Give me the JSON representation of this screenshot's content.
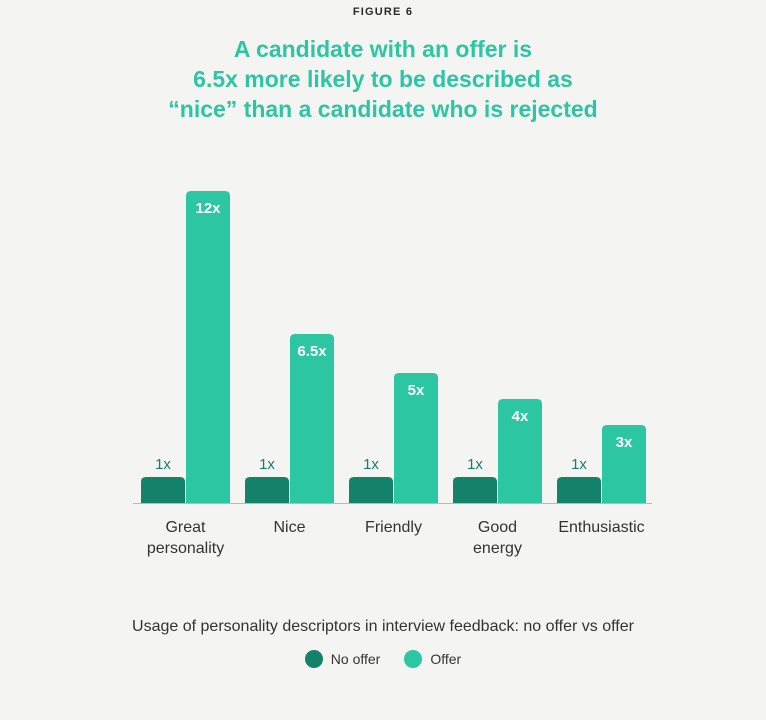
{
  "figure_label": "FIGURE 6",
  "chart_data": {
    "type": "bar",
    "title_lines": [
      "A candidate with an offer is",
      "6.5x more likely to be described as",
      "“nice” than a candidate who is rejected"
    ],
    "categories": [
      [
        "Great",
        "personality"
      ],
      [
        "Nice"
      ],
      [
        "Friendly"
      ],
      [
        "Good",
        "energy"
      ],
      [
        "Enthusiastic"
      ]
    ],
    "series": [
      {
        "name": "No offer",
        "color": "#14826a",
        "values": [
          1,
          1,
          1,
          1,
          1
        ],
        "labels": [
          "1x",
          "1x",
          "1x",
          "1x",
          "1x"
        ]
      },
      {
        "name": "Offer",
        "color": "#2cc6a3",
        "values": [
          12,
          6.5,
          5,
          4,
          3
        ],
        "labels": [
          "12x",
          "6.5x",
          "5x",
          "4x",
          "3x"
        ]
      }
    ],
    "ylim": [
      0,
      12
    ],
    "caption": "Usage of personality descriptors in interview feedback: no offer vs offer",
    "legend_position": "bottom-center",
    "grid": false
  }
}
